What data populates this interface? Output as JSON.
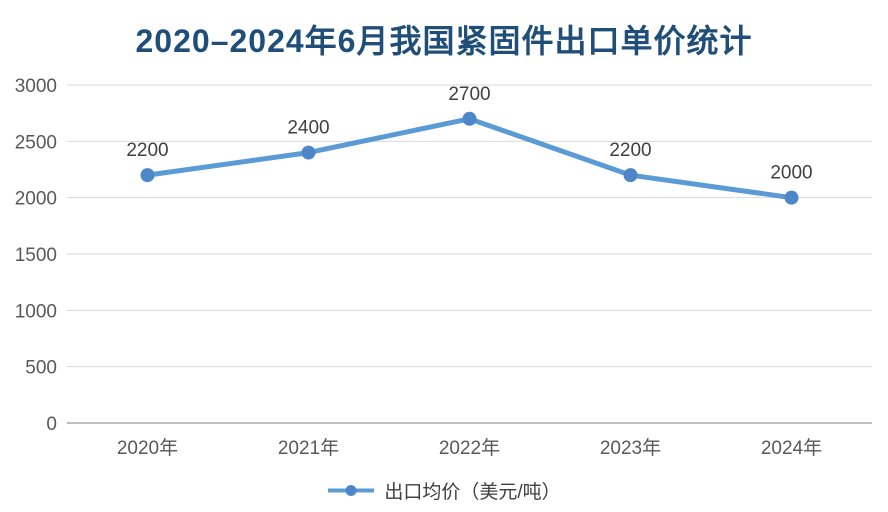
{
  "page": {
    "background": "#ffffff"
  },
  "chart_data": {
    "type": "line",
    "title": "2020–2024年6月我国紧固件出口单价统计",
    "categories": [
      "2020年",
      "2021年",
      "2022年",
      "2023年",
      "2024年"
    ],
    "series": [
      {
        "name": "出口均价（美元/吨）",
        "values": [
          2200,
          2400,
          2700,
          2200,
          2000
        ]
      }
    ],
    "data_labels": [
      "2200",
      "2400",
      "2700",
      "2200",
      "2000"
    ],
    "yticks": [
      0,
      500,
      1000,
      1500,
      2000,
      2500,
      3000
    ],
    "ylim": [
      0,
      3000
    ],
    "xlabel": "",
    "ylabel": "",
    "grid": true,
    "legend_position": "bottom",
    "colors": {
      "line": "#5B9BD5",
      "marker": "#4E87C7",
      "title": "#1F4E79",
      "axis_text": "#595959",
      "data_label": "#404040",
      "gridline": "#D9D9D9",
      "axis_line": "#BFBFBF"
    }
  }
}
